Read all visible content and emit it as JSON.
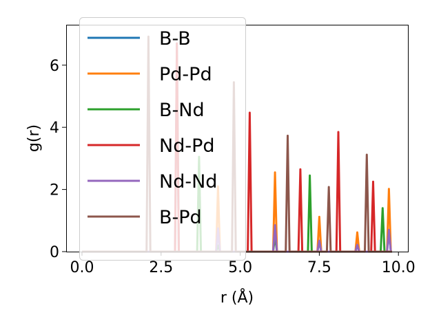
{
  "chart_data": {
    "type": "line",
    "title": "",
    "xlabel": "r (Å)",
    "ylabel": "g(r)",
    "xlim": [
      -0.5,
      10.3
    ],
    "ylim": [
      0,
      7.3
    ],
    "xticks": [
      0.0,
      2.5,
      5.0,
      7.5,
      10.0
    ],
    "xtick_labels": [
      "0.0",
      "2.5",
      "5.0",
      "7.5",
      "10.0"
    ],
    "yticks": [
      0,
      2,
      4,
      6
    ],
    "ytick_labels": [
      "0",
      "2",
      "4",
      "6"
    ],
    "legend_position": "top-left",
    "grid": false,
    "r_max": 9.8,
    "peak_half_width": 0.06,
    "series": [
      {
        "name": "B-B",
        "color": "#1f77b4",
        "peaks": [
          [
            3.0,
            6.7
          ],
          [
            4.3,
            0.75
          ],
          [
            6.1,
            0.85
          ],
          [
            7.5,
            0.35
          ],
          [
            8.7,
            0.22
          ],
          [
            9.7,
            0.7
          ]
        ]
      },
      {
        "name": "Pd-Pd",
        "color": "#ff7f0e",
        "peaks": [
          [
            4.3,
            2.1
          ],
          [
            6.1,
            2.55
          ],
          [
            7.5,
            1.12
          ],
          [
            8.7,
            0.62
          ],
          [
            9.7,
            2.02
          ]
        ]
      },
      {
        "name": "B-Nd",
        "color": "#2ca02c",
        "peaks": [
          [
            3.7,
            3.05
          ],
          [
            4.3,
            0.2
          ],
          [
            6.1,
            0.5
          ],
          [
            7.2,
            2.45
          ],
          [
            9.5,
            1.4
          ]
        ]
      },
      {
        "name": "Nd-Pd",
        "color": "#d62728",
        "peaks": [
          [
            3.0,
            6.7
          ],
          [
            5.3,
            4.47
          ],
          [
            6.9,
            2.65
          ],
          [
            8.1,
            3.85
          ],
          [
            9.2,
            2.25
          ]
        ]
      },
      {
        "name": "Nd-Nd",
        "color": "#9467bd",
        "peaks": [
          [
            4.3,
            0.75
          ],
          [
            6.1,
            0.85
          ],
          [
            7.5,
            0.35
          ],
          [
            8.7,
            0.22
          ],
          [
            9.7,
            0.7
          ]
        ]
      },
      {
        "name": "B-Pd",
        "color": "#8c564b",
        "peaks": [
          [
            2.1,
            6.92
          ],
          [
            4.8,
            5.45
          ],
          [
            6.5,
            3.73
          ],
          [
            7.8,
            2.08
          ],
          [
            9.0,
            3.12
          ]
        ]
      }
    ]
  }
}
